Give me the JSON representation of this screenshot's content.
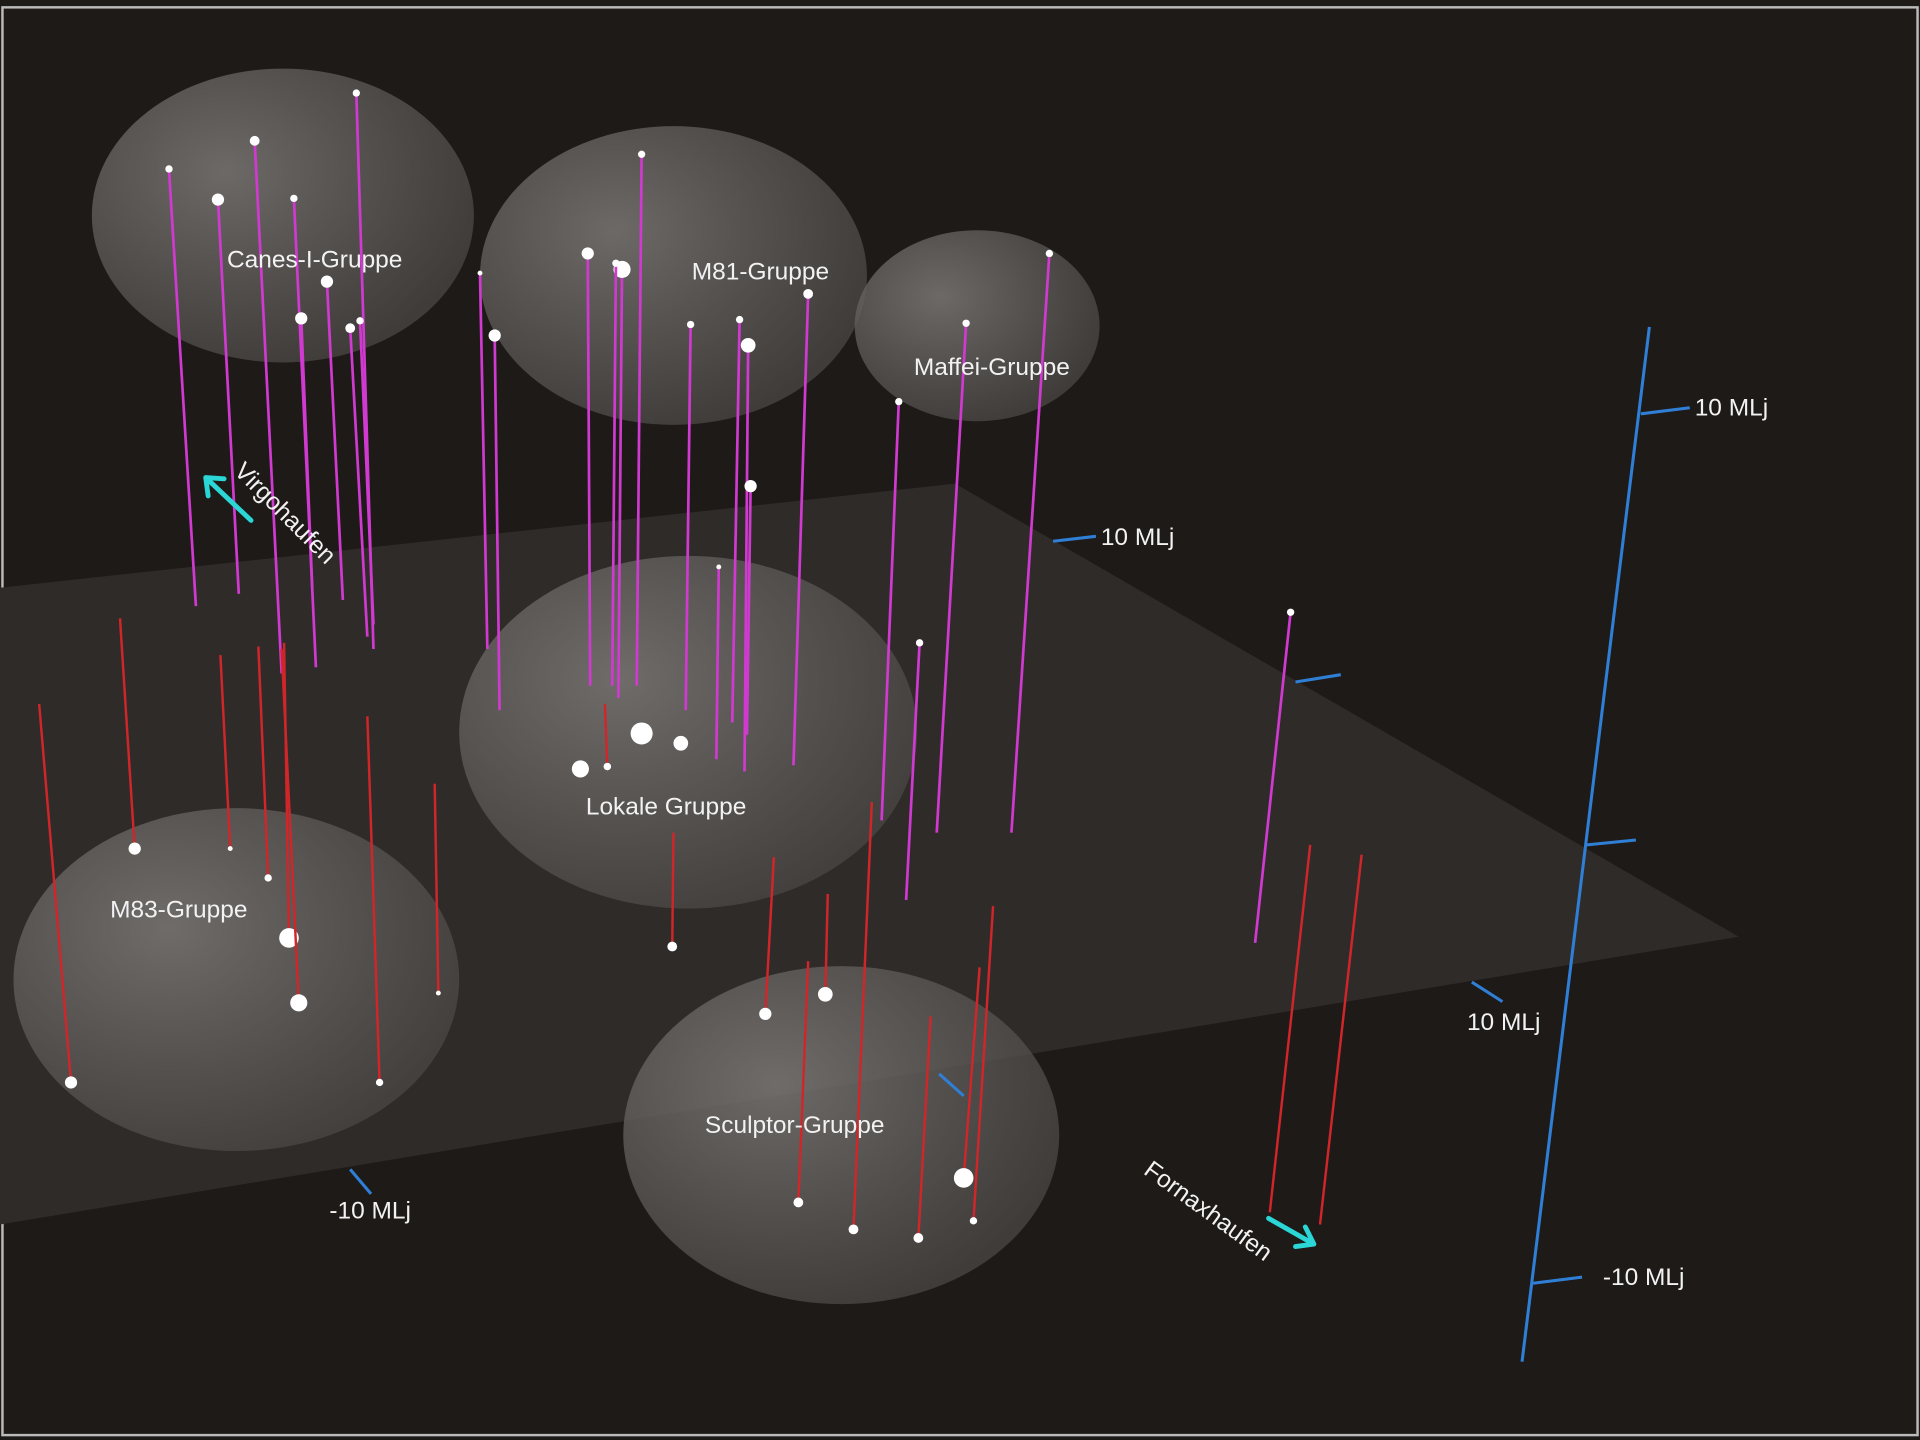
{
  "groups": [
    {
      "label": "Canes-I-Gruppe"
    },
    {
      "label": "M81-Gruppe"
    },
    {
      "label": "Maffei-Gruppe"
    },
    {
      "label": "Lokale Gruppe"
    },
    {
      "label": "M83-Gruppe"
    },
    {
      "label": "Sculptor-Gruppe"
    }
  ],
  "clusters": [
    {
      "label": "Virgohaufen"
    },
    {
      "label": "Fornaxhaufen"
    }
  ],
  "scale_labels": [
    "10 MLj",
    "10 MLj",
    "10 MLj",
    "-10 MLj",
    "-10 MLj"
  ]
}
